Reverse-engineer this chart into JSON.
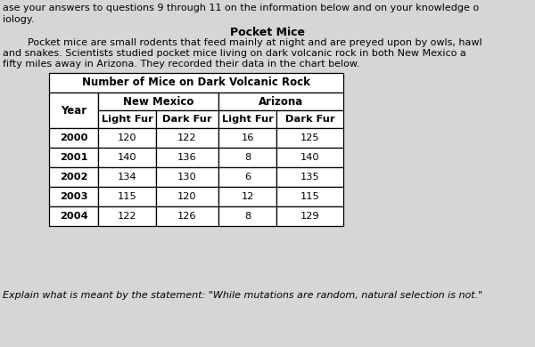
{
  "header_line1": "ase your answers to questions 9 through 11 on the information below and on your knowledge o",
  "header_line2": "iology.",
  "title_bold": "Pocket Mice",
  "para_line1": "        Pocket mice are small rodents that feed mainly at night and are preyed upon by owls, hawl",
  "para_line2": "and snakes. Scientists studied pocket mice living on dark volcanic rock in both New Mexico a",
  "para_line3": "fifty miles away in Arizona. They recorded their data in the chart below.",
  "table_title": "Number of Mice on Dark Volcanic Rock",
  "col_group1": "New Mexico",
  "col_group2": "Arizona",
  "years": [
    "2000",
    "2001",
    "2002",
    "2003",
    "2004"
  ],
  "nm_light": [
    120,
    140,
    134,
    115,
    122
  ],
  "nm_dark": [
    122,
    136,
    130,
    120,
    126
  ],
  "az_light": [
    16,
    8,
    6,
    12,
    8
  ],
  "az_dark": [
    125,
    140,
    135,
    115,
    129
  ],
  "footer": "Explain what is meant by the statement: \"While mutations are random, natural selection is not.\"",
  "bg_color": "#d6d6d6",
  "text_color": "#000000"
}
